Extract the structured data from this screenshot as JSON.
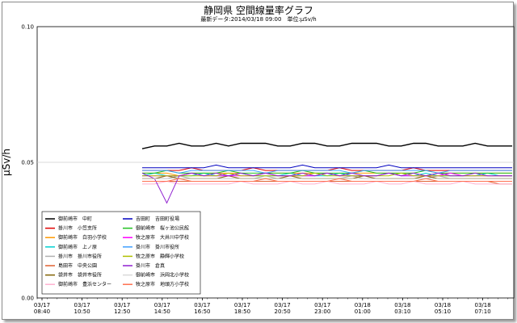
{
  "chart_data": {
    "type": "line",
    "title": "静岡県 空間線量率グラフ",
    "subtitle": "最新データ:2014/03/18 09:00　単位:μSv/h",
    "ylabel": "μSv/h",
    "xlabel": "",
    "ylim": [
      0.0,
      0.1
    ],
    "yticks": [
      "0.00",
      "0.05",
      "0.10"
    ],
    "grid": true,
    "legend_placement": "bottom-left",
    "xtick_dates": [
      "03/17",
      "03/17",
      "03/17",
      "03/17",
      "03/17",
      "03/17",
      "03/17",
      "03/17",
      "03/18",
      "03/18",
      "03/18",
      "03/18"
    ],
    "xtick_times": [
      "08:40",
      "10:50",
      "12:50",
      "14:50",
      "16:50",
      "18:50",
      "20:50",
      "23:00",
      "01:00",
      "03:10",
      "05:10",
      "07:10"
    ],
    "series": [
      {
        "name": "御前崎市　中町",
        "color": "#000000",
        "values": [
          0.055,
          0.056,
          0.056,
          0.057,
          0.056,
          0.056,
          0.057,
          0.056,
          0.057,
          0.057,
          0.057,
          0.056,
          0.056,
          0.057,
          0.057,
          0.056,
          0.056,
          0.057,
          0.057,
          0.057,
          0.056,
          0.056,
          0.057,
          0.057,
          0.056,
          0.056,
          0.056,
          0.057,
          0.056,
          0.056,
          0.056
        ]
      },
      {
        "name": "掛川市　小笠支所",
        "color": "#e00000",
        "values": [
          0.047,
          0.047,
          0.047,
          0.047,
          0.048,
          0.047,
          0.047,
          0.047,
          0.047,
          0.048,
          0.047,
          0.047,
          0.047,
          0.047,
          0.047,
          0.047,
          0.048,
          0.047,
          0.047,
          0.047,
          0.047,
          0.047,
          0.048,
          0.047,
          0.047,
          0.047,
          0.047,
          0.047,
          0.047,
          0.047,
          0.047
        ]
      },
      {
        "name": "御前崎市　白羽小学校",
        "color": "#ff9900",
        "values": [
          0.046,
          0.046,
          0.046,
          0.045,
          0.046,
          0.046,
          0.046,
          0.046,
          0.046,
          0.045,
          0.046,
          0.046,
          0.046,
          0.046,
          0.046,
          0.046,
          0.045,
          0.046,
          0.046,
          0.046,
          0.046,
          0.046,
          0.046,
          0.045,
          0.046,
          0.046,
          0.046,
          0.046,
          0.046,
          0.046,
          0.046
        ]
      },
      {
        "name": "御前崎市　上ノ原",
        "color": "#00d0d0",
        "values": [
          0.045,
          0.046,
          0.045,
          0.045,
          0.045,
          0.046,
          0.045,
          0.045,
          0.046,
          0.045,
          0.045,
          0.045,
          0.046,
          0.045,
          0.045,
          0.045,
          0.046,
          0.045,
          0.045,
          0.045,
          0.046,
          0.045,
          0.045,
          0.046,
          0.045,
          0.045,
          0.045,
          0.045,
          0.046,
          0.045,
          0.045
        ]
      },
      {
        "name": "掛川市　掛川市役所",
        "color": "#b0b0b0",
        "values": [
          0.044,
          0.044,
          0.044,
          0.045,
          0.044,
          0.044,
          0.044,
          0.044,
          0.044,
          0.044,
          0.045,
          0.044,
          0.044,
          0.044,
          0.044,
          0.044,
          0.044,
          0.045,
          0.044,
          0.044,
          0.044,
          0.044,
          0.044,
          0.044,
          0.045,
          0.044,
          0.044,
          0.044,
          0.044,
          0.044,
          0.044
        ]
      },
      {
        "name": "島田市　中央公園",
        "color": "#e06030",
        "values": [
          0.043,
          0.043,
          0.043,
          0.043,
          0.043,
          0.043,
          0.043,
          0.043,
          0.043,
          0.043,
          0.043,
          0.043,
          0.043,
          0.043,
          0.043,
          0.043,
          0.043,
          0.043,
          0.043,
          0.043,
          0.043,
          0.043,
          0.043,
          0.043,
          0.043,
          0.043,
          0.043,
          0.043,
          0.043,
          0.042,
          0.042
        ]
      },
      {
        "name": "袋井市　袋井市役所",
        "color": "#806000",
        "values": [
          0.044,
          0.044,
          0.045,
          0.044,
          0.044,
          0.044,
          0.044,
          0.045,
          0.044,
          0.044,
          0.044,
          0.044,
          0.045,
          0.044,
          0.044,
          0.044,
          0.044,
          0.044,
          0.045,
          0.044,
          0.044,
          0.044,
          0.044,
          0.045,
          0.044,
          0.044,
          0.044,
          0.044,
          0.044,
          0.044,
          0.044
        ]
      },
      {
        "name": "御前崎市　豊浜センター",
        "color": "#ffb0d0",
        "values": [
          0.042,
          0.042,
          0.043,
          0.042,
          0.042,
          0.042,
          0.042,
          0.042,
          0.043,
          0.042,
          0.042,
          0.042,
          0.043,
          0.042,
          0.042,
          0.043,
          0.042,
          0.042,
          0.042,
          0.043,
          0.042,
          0.042,
          0.043,
          0.042,
          0.042,
          0.042,
          0.043,
          0.042,
          0.042,
          0.042,
          0.042
        ]
      },
      {
        "name": "吉田町　吉田町役場",
        "color": "#0000c0",
        "values": [
          0.048,
          0.048,
          0.048,
          0.048,
          0.048,
          0.048,
          0.049,
          0.048,
          0.048,
          0.048,
          0.048,
          0.048,
          0.048,
          0.049,
          0.048,
          0.048,
          0.048,
          0.048,
          0.048,
          0.048,
          0.049,
          0.048,
          0.048,
          0.048,
          0.048,
          0.048,
          0.048,
          0.048,
          0.048,
          0.048,
          0.048
        ]
      },
      {
        "name": "御前崎市　桜ヶ池公民館",
        "color": "#20c020",
        "values": [
          0.046,
          0.046,
          0.047,
          0.046,
          0.046,
          0.046,
          0.046,
          0.047,
          0.046,
          0.046,
          0.046,
          0.046,
          0.046,
          0.047,
          0.046,
          0.046,
          0.046,
          0.046,
          0.047,
          0.046,
          0.046,
          0.046,
          0.046,
          0.047,
          0.046,
          0.046,
          0.046,
          0.046,
          0.046,
          0.046,
          0.046
        ]
      },
      {
        "name": "牧之原市　大井川中学校",
        "color": "#ff00ff",
        "values": [
          0.045,
          0.045,
          0.045,
          0.045,
          0.046,
          0.045,
          0.045,
          0.045,
          0.045,
          0.045,
          0.046,
          0.045,
          0.045,
          0.045,
          0.045,
          0.046,
          0.045,
          0.045,
          0.045,
          0.045,
          0.046,
          0.045,
          0.045,
          0.045,
          0.045,
          0.046,
          0.045,
          0.045,
          0.045,
          0.045,
          0.045
        ]
      },
      {
        "name": "掛川市　掛川市役所",
        "color": "#40a0ff",
        "values": [
          0.047,
          0.047,
          0.047,
          0.046,
          0.047,
          0.047,
          0.047,
          0.047,
          0.047,
          0.047,
          0.046,
          0.047,
          0.047,
          0.047,
          0.047,
          0.047,
          0.047,
          0.046,
          0.047,
          0.047,
          0.047,
          0.047,
          0.047,
          0.047,
          0.046,
          0.047,
          0.047,
          0.047,
          0.047,
          0.047,
          0.047
        ]
      },
      {
        "name": "牧之原市　静輝小学校",
        "color": "#b0c000",
        "values": [
          0.045,
          0.045,
          0.045,
          0.045,
          0.045,
          0.045,
          0.045,
          0.046,
          0.045,
          0.045,
          0.045,
          0.045,
          0.045,
          0.045,
          0.046,
          0.045,
          0.045,
          0.045,
          0.045,
          0.045,
          0.045,
          0.046,
          0.045,
          0.045,
          0.045,
          0.045,
          0.045,
          0.045,
          0.045,
          0.045,
          0.045
        ]
      },
      {
        "name": "掛川市　倉真",
        "color": "#9020d0",
        "values": [
          0.046,
          0.044,
          0.035,
          0.045,
          0.046,
          0.045,
          0.046,
          0.045,
          0.046,
          0.045,
          0.046,
          0.045,
          0.045,
          0.046,
          0.045,
          0.046,
          0.045,
          0.046,
          0.045,
          0.045,
          0.046,
          0.045,
          0.046,
          0.045,
          0.046,
          0.045,
          0.045,
          0.046,
          0.045,
          0.045,
          0.045
        ]
      },
      {
        "name": "御前崎市　浜岡北小学校",
        "color": "#d8d8d8",
        "values": [
          0.044,
          0.044,
          0.044,
          0.044,
          0.044,
          0.044,
          0.044,
          0.044,
          0.044,
          0.044,
          0.044,
          0.044,
          0.044,
          0.044,
          0.044,
          0.044,
          0.044,
          0.044,
          0.044,
          0.044,
          0.044,
          0.044,
          0.044,
          0.044,
          0.044,
          0.044,
          0.044,
          0.044,
          0.044,
          0.044,
          0.044
        ]
      },
      {
        "name": "牧之原市　地頭方小学校",
        "color": "#ff7050",
        "values": [
          0.043,
          0.043,
          0.043,
          0.044,
          0.043,
          0.043,
          0.043,
          0.043,
          0.043,
          0.043,
          0.044,
          0.043,
          0.043,
          0.043,
          0.043,
          0.043,
          0.044,
          0.043,
          0.043,
          0.043,
          0.043,
          0.043,
          0.043,
          0.044,
          0.043,
          0.043,
          0.043,
          0.043,
          0.043,
          0.043,
          0.043
        ]
      }
    ]
  }
}
